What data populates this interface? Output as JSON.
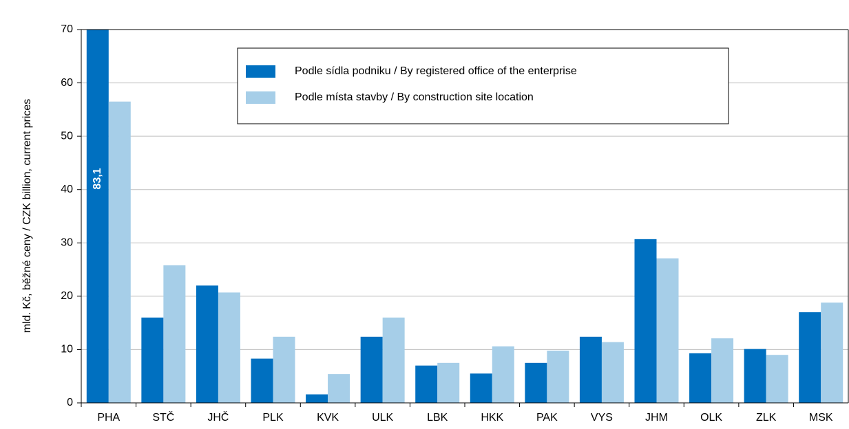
{
  "chart_data": {
    "type": "bar",
    "ylabel": "mld. Kč, běžné ceny / CZK billion, current prices",
    "categories": [
      "PHA",
      "STČ",
      "JHČ",
      "PLK",
      "KVK",
      "ULK",
      "LBK",
      "HKK",
      "PAK",
      "VYS",
      "JHM",
      "OLK",
      "ZLK",
      "MSK"
    ],
    "series": [
      {
        "name": "Podle sídla podniku / By registered office of the enterprise",
        "color": "#0070c0",
        "values": [
          83.1,
          16,
          22,
          8.3,
          1.6,
          12.4,
          7,
          5.5,
          7.5,
          12.4,
          30.7,
          9.3,
          10.1,
          17
        ],
        "value_labels": [
          "83,1",
          null,
          null,
          null,
          null,
          null,
          null,
          null,
          null,
          null,
          null,
          null,
          null,
          null
        ]
      },
      {
        "name": "Podle místa stavby / By construction site location",
        "color": "#a6cee8",
        "values": [
          56.5,
          25.8,
          20.7,
          12.4,
          5.4,
          16,
          7.5,
          10.6,
          9.8,
          11.4,
          27.1,
          12.1,
          9,
          18.8
        ]
      }
    ],
    "ylim": [
      0,
      70
    ],
    "yticks": [
      0,
      10,
      20,
      30,
      40,
      50,
      60,
      70
    ],
    "grid": true
  }
}
